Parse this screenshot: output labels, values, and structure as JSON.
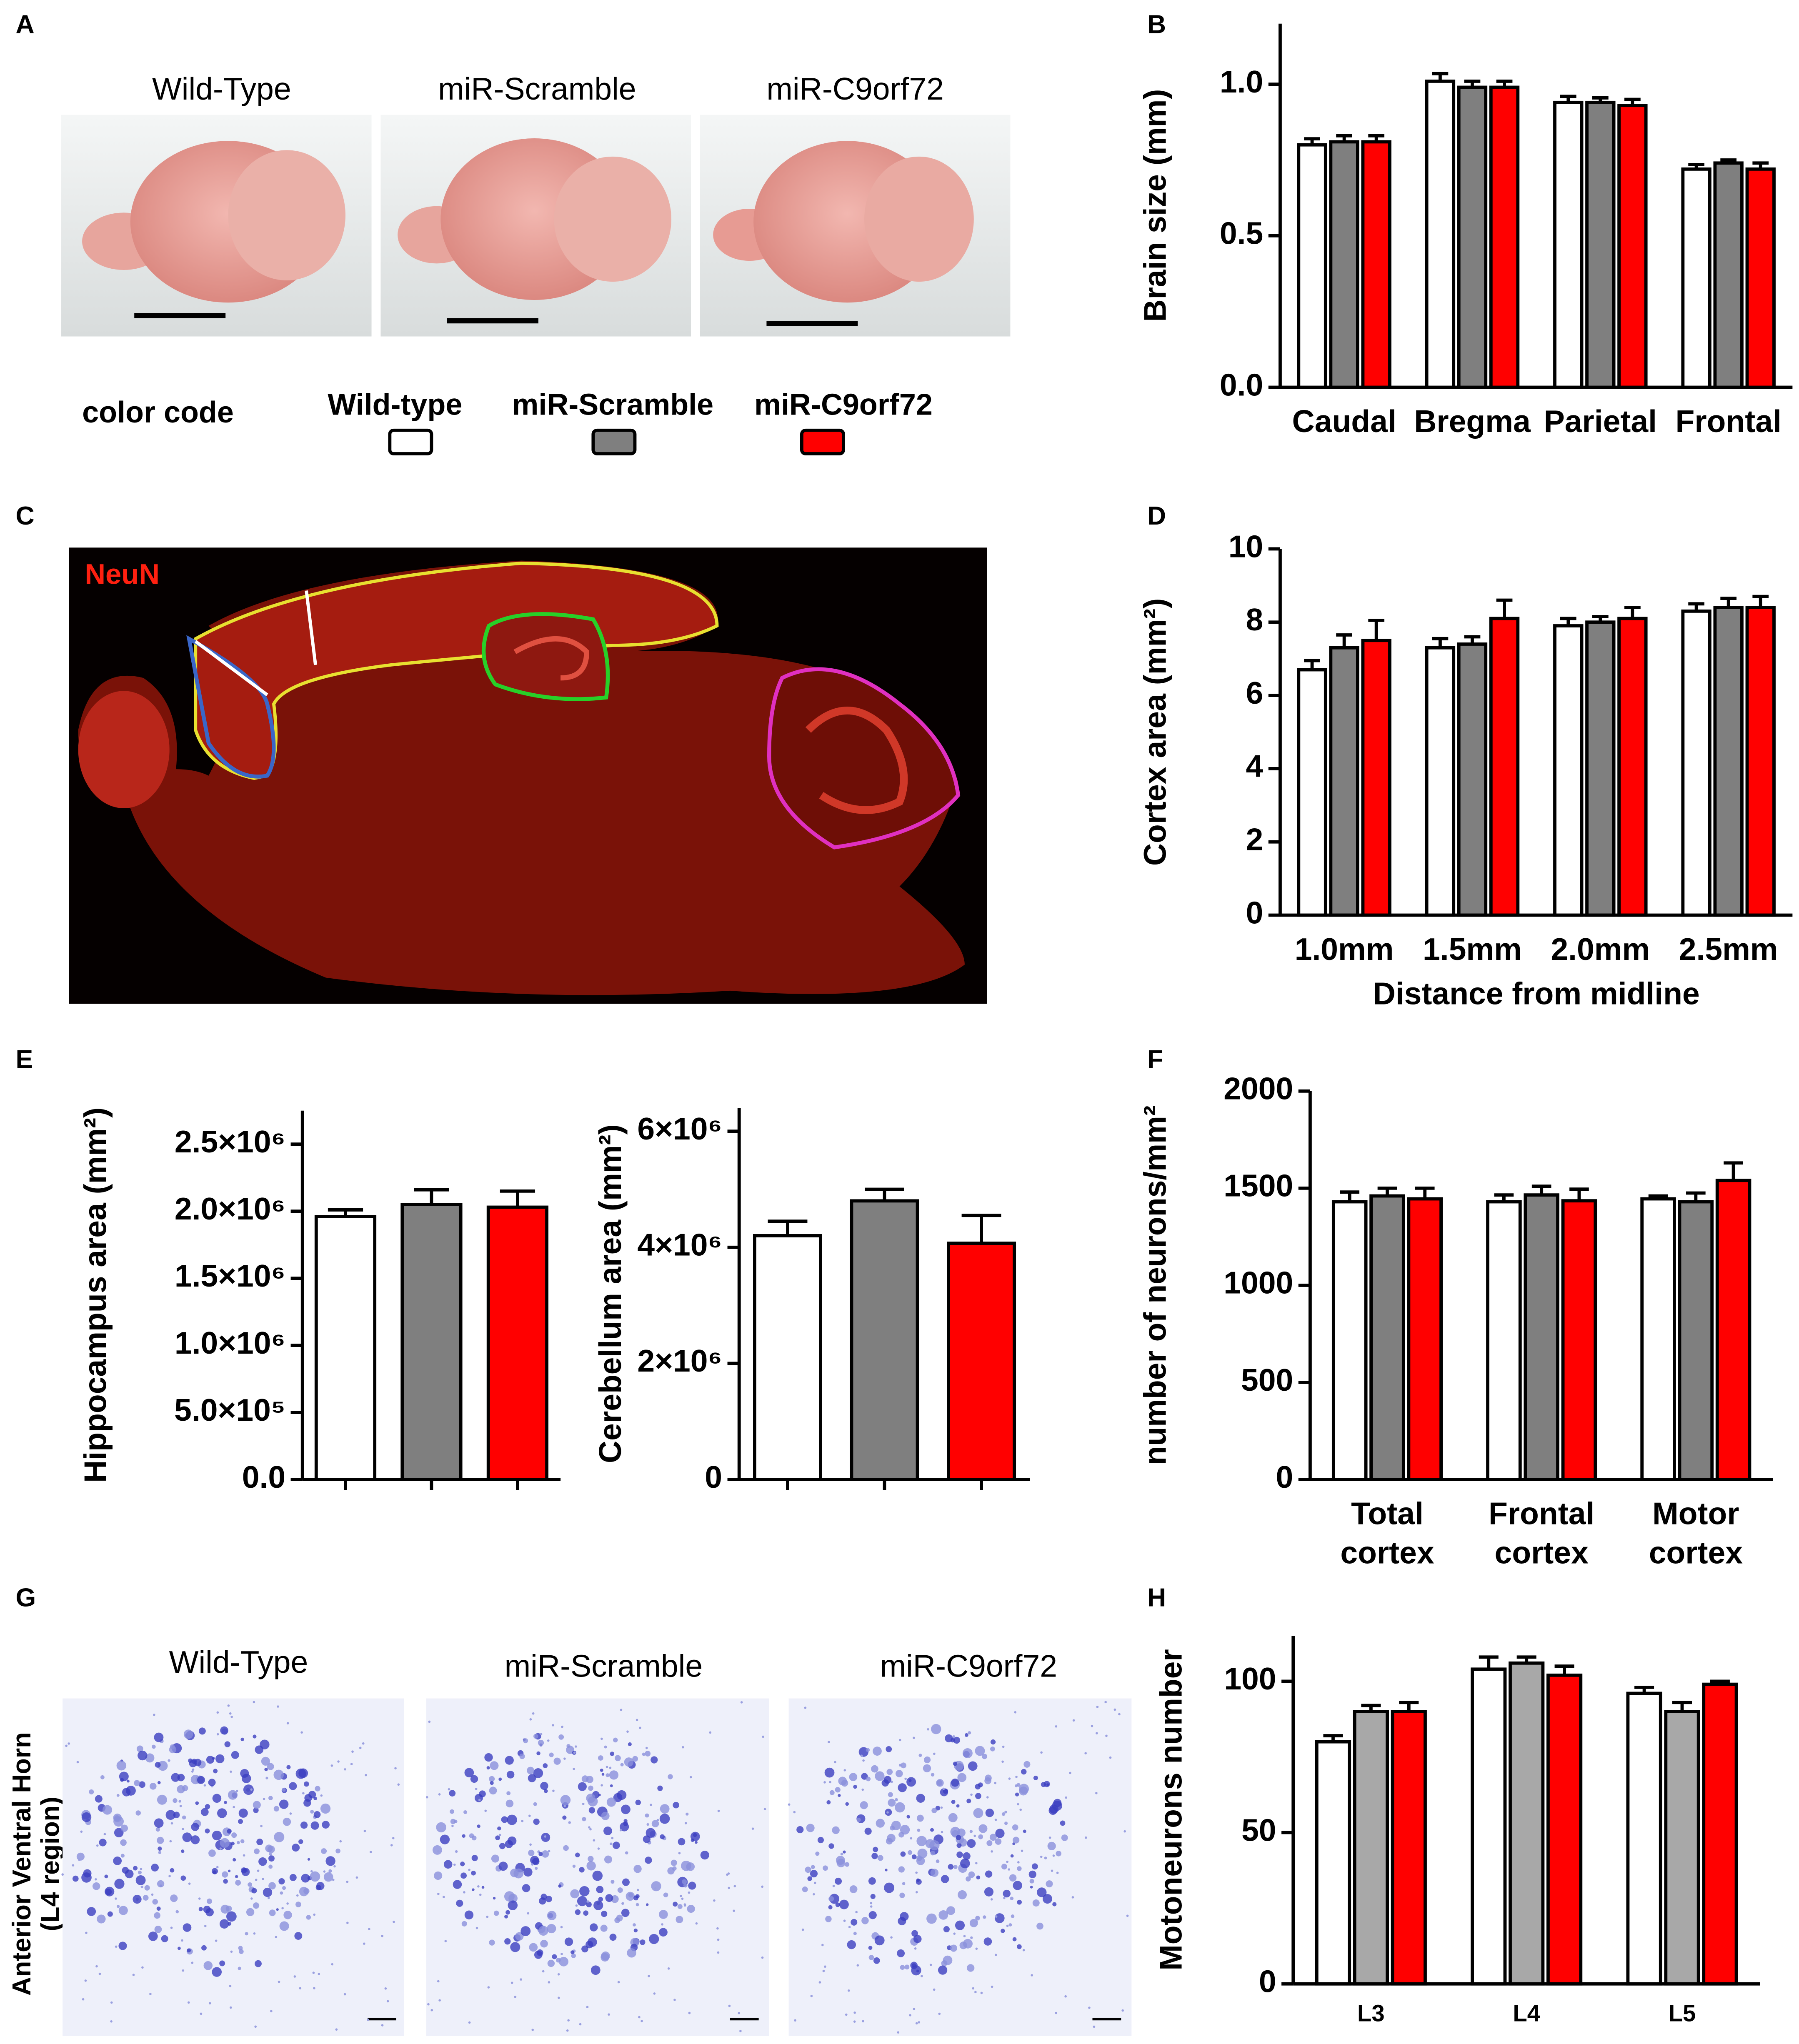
{
  "panel_labels": [
    "A",
    "B",
    "C",
    "D",
    "E",
    "F",
    "G",
    "H"
  ],
  "panel_a": {
    "labels": [
      "Wild-Type",
      "miR-Scramble",
      "miR-C9orf72"
    ]
  },
  "legend": {
    "title": "color code"
  },
  "panel_c": {
    "stain": "NeuN"
  },
  "panel_g": {
    "labels": [
      "Wild-Type",
      "miR-Scramble",
      "miR-C9orf72"
    ],
    "ylabel": [
      "Anterior Ventral Horn",
      "(L4 region)"
    ]
  },
  "chart_data": [
    {
      "type": "bar",
      "ylabel": "Brain size (mm)",
      "categories": [
        "Caudal",
        "Bregma",
        "Parietal",
        "Frontal"
      ],
      "series": [
        {
          "name": "Wild-type",
          "color": "#ffffff",
          "values": [
            0.8,
            1.01,
            0.94,
            0.72
          ],
          "errors": [
            0.02,
            0.025,
            0.02,
            0.015
          ]
        },
        {
          "name": "miR-Scramble",
          "color": "#7f7f7f",
          "values": [
            0.81,
            0.99,
            0.94,
            0.74
          ],
          "errors": [
            0.02,
            0.02,
            0.015,
            0.01
          ]
        },
        {
          "name": "miR-C9orf72",
          "color": "#ff0000",
          "values": [
            0.81,
            0.99,
            0.93,
            0.72
          ],
          "errors": [
            0.02,
            0.02,
            0.02,
            0.02
          ]
        }
      ],
      "ylim": [
        0,
        1.2
      ],
      "yticks": [
        {
          "value": 0,
          "label": "0.0"
        },
        {
          "value": 0.5,
          "label": "0.5"
        },
        {
          "value": 1,
          "label": "1.0"
        }
      ]
    },
    {
      "type": "bar",
      "ylabel": "Cortex area (mm²)",
      "xlabel": "Distance from midline",
      "categories": [
        "1.0mm",
        "1.5mm",
        "2.0mm",
        "2.5mm"
      ],
      "series": [
        {
          "color": "#ffffff",
          "values": [
            6.7,
            7.3,
            7.9,
            8.3
          ],
          "errors": [
            0.25,
            0.25,
            0.2,
            0.2
          ]
        },
        {
          "color": "#7f7f7f",
          "values": [
            7.3,
            7.4,
            8.0,
            8.4
          ],
          "errors": [
            0.35,
            0.2,
            0.15,
            0.25
          ]
        },
        {
          "color": "#ff0000",
          "values": [
            7.5,
            8.1,
            8.1,
            8.4
          ],
          "errors": [
            0.55,
            0.5,
            0.3,
            0.3
          ]
        }
      ],
      "ylim": [
        0,
        10
      ],
      "yticks": [
        0,
        2,
        4,
        6,
        8,
        10
      ]
    },
    {
      "type": "bar",
      "ylabel": "Hippocampus area (mm²)",
      "categories": [
        null,
        null,
        null
      ],
      "values": [
        1960000,
        2050000,
        2030000
      ],
      "errors": [
        50000,
        110000,
        120000
      ],
      "colors": [
        "#ffffff",
        "#7f7f7f",
        "#ff0000"
      ],
      "ylim": [
        0,
        2750000
      ],
      "yticks": [
        {
          "value": 0,
          "label": "0.0"
        },
        {
          "value": 500000,
          "label": "5.0×10⁵"
        },
        {
          "value": 1000000,
          "label": "1.0×10⁶"
        },
        {
          "value": 1500000,
          "label": "1.5×10⁶"
        },
        {
          "value": 2000000,
          "label": "2.0×10⁶"
        },
        {
          "value": 2500000,
          "label": "2.5×10⁶"
        }
      ]
    },
    {
      "type": "bar",
      "ylabel": "Cerebellum area (mm²)",
      "categories": [
        null,
        null,
        null
      ],
      "values": [
        4200000,
        4800000,
        4070000
      ],
      "errors": [
        250000,
        200000,
        480000
      ],
      "colors": [
        "#ffffff",
        "#7f7f7f",
        "#ff0000"
      ],
      "ylim": [
        0,
        6400000
      ],
      "yticks": [
        0,
        {
          "value": 2000000,
          "label": "2×10⁶"
        },
        {
          "value": 4000000,
          "label": "4×10⁶"
        },
        {
          "value": 6000000,
          "label": "6×10⁶"
        }
      ]
    },
    {
      "type": "bar",
      "ylabel": "number of neurons/mm²",
      "categories": [
        "Total cortex",
        "Frontal cortex",
        "Motor cortex"
      ],
      "series": [
        {
          "color": "#ffffff",
          "values": [
            1430,
            1430,
            1445
          ],
          "errors": [
            50,
            35,
            15
          ]
        },
        {
          "color": "#7f7f7f",
          "values": [
            1460,
            1465,
            1430
          ],
          "errors": [
            40,
            45,
            45
          ]
        },
        {
          "color": "#ff0000",
          "values": [
            1445,
            1435,
            1540
          ],
          "errors": [
            55,
            60,
            90
          ]
        }
      ],
      "ylim": [
        0,
        2000
      ],
      "yticks": [
        0,
        500,
        1000,
        1500,
        2000
      ]
    },
    {
      "type": "bar",
      "ylabel": "Motoneurons number",
      "categories": [
        "L3",
        "L4",
        "L5"
      ],
      "series": [
        {
          "color": "#ffffff",
          "values": [
            80,
            104,
            96
          ],
          "errors": [
            2,
            4,
            2
          ]
        },
        {
          "color": "#a8a8a8",
          "values": [
            90,
            106,
            90
          ],
          "errors": [
            2,
            2,
            3
          ]
        },
        {
          "color": "#ff0000",
          "values": [
            90,
            102,
            99
          ],
          "errors": [
            3,
            3,
            1
          ]
        }
      ],
      "ylim": [
        0,
        115
      ],
      "yticks": [
        0,
        50,
        100
      ]
    }
  ]
}
